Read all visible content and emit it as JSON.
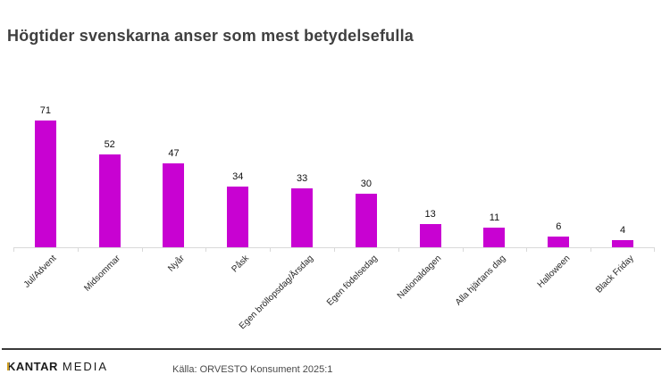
{
  "chart_data": {
    "type": "bar",
    "title": "Högtider svenskarna anser som mest betydelsefulla",
    "categories": [
      "Jul/Advent",
      "Midsommar",
      "Nyår",
      "Påsk",
      "Egen bröllopsdag/Årsdag",
      "Egen födelsedag",
      "Nationaldagen",
      "Alla hjärtans dag",
      "Halloween",
      "Black Friday"
    ],
    "values": [
      71,
      52,
      47,
      34,
      33,
      30,
      13,
      11,
      6,
      4
    ],
    "xlabel": "",
    "ylabel": "",
    "ylim": [
      0,
      85
    ],
    "grid": false,
    "legend": "none",
    "value_labels": true,
    "x_tick_rotation": 45,
    "bar_color": "#C802D2"
  },
  "footer": {
    "logo_kantar": "KANTAR",
    "logo_media": "MEDIA",
    "source": "Källa: ORVESTO Konsument 2025:1"
  },
  "colors": {
    "bar": "#C802D2",
    "title_text": "#3F3F3F",
    "axis_line": "#D9D9D9",
    "footer_line": "#3A3A3A",
    "logo_gold": "#D0A024"
  }
}
